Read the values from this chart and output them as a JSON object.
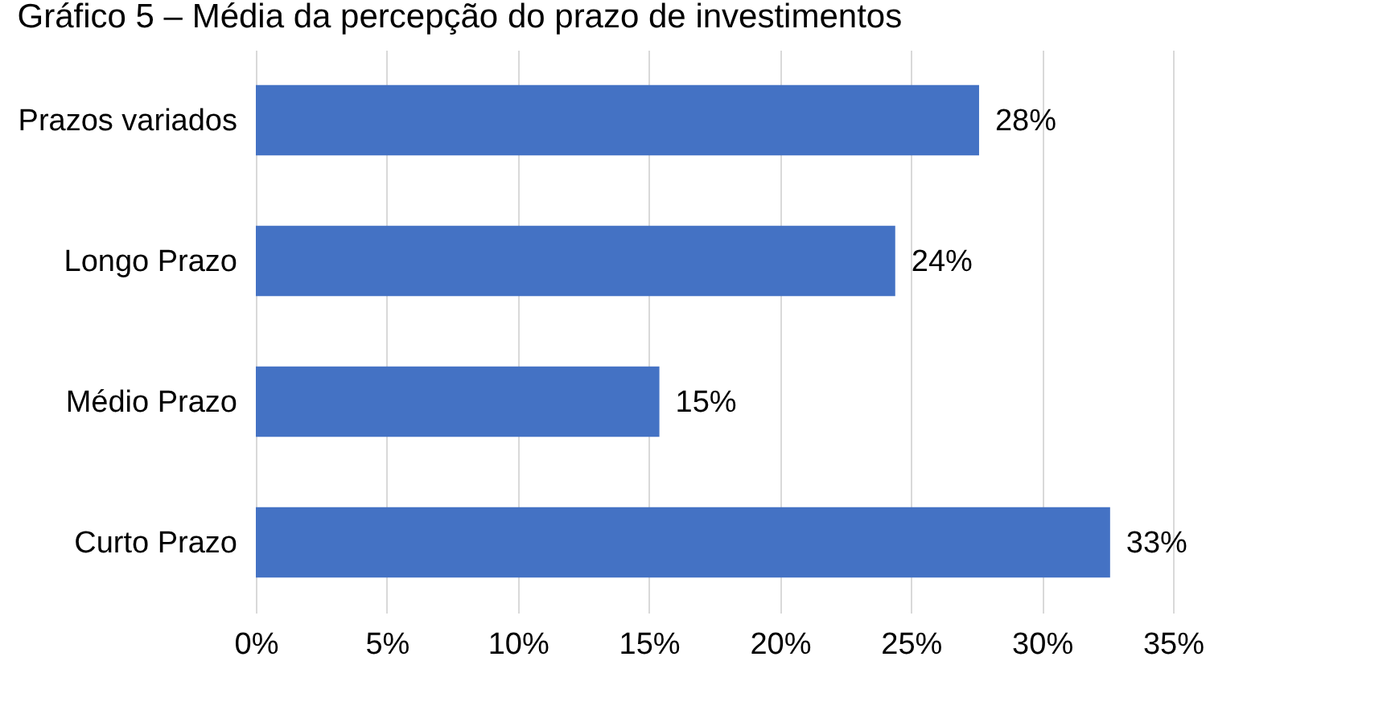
{
  "chart_data": {
    "type": "bar",
    "orientation": "horizontal",
    "title": "Gráfico 5 – Média da percepção do prazo de investimentos",
    "categories": [
      "Prazos variados",
      "Longo Prazo",
      "Médio Prazo",
      "Curto Prazo"
    ],
    "values": [
      27.6,
      24.4,
      15.4,
      32.6
    ],
    "value_labels": [
      "28%",
      "24%",
      "15%",
      "33%"
    ],
    "color": "#4472c4",
    "xlim": [
      0,
      35
    ],
    "xticks": [
      {
        "value": 0,
        "label": "0%"
      },
      {
        "value": 5,
        "label": "5%"
      },
      {
        "value": 10,
        "label": "10%"
      },
      {
        "value": 15,
        "label": "15%"
      },
      {
        "value": 20,
        "label": "20%"
      },
      {
        "value": 25,
        "label": "25%"
      },
      {
        "value": 30,
        "label": "30%"
      },
      {
        "value": 35,
        "label": "35%"
      }
    ],
    "grid": "x"
  }
}
